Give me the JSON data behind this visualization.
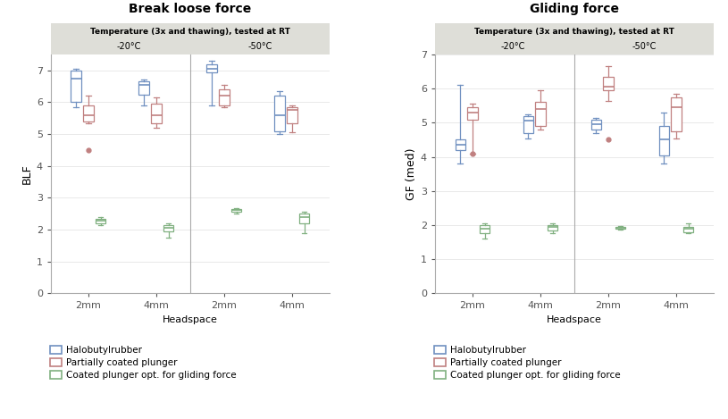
{
  "left_title": "Break loose force",
  "right_title": "Gliding force",
  "subtitle": "Temperature (3x and thawing), tested at RT",
  "temp_labels": [
    "-20°C",
    "-50°C"
  ],
  "x_labels": [
    "2mm",
    "4mm",
    "2mm",
    "4mm"
  ],
  "left_ylabel": "BLF",
  "right_ylabel": "GF (med)",
  "xlabel": "Headspace",
  "colors": {
    "blue": "#7090C0",
    "red": "#C08080",
    "green": "#80B080"
  },
  "legend_labels": [
    "Halobutylrubber",
    "Partially coated plunger",
    "Coated plunger opt. for gliding force"
  ],
  "left_ylim": [
    0,
    7.5
  ],
  "right_ylim": [
    0,
    7.0
  ],
  "left_yticks": [
    0,
    1,
    2,
    3,
    4,
    5,
    6,
    7
  ],
  "right_yticks": [
    0,
    1,
    2,
    3,
    4,
    5,
    6,
    7
  ],
  "left_boxes": {
    "blue": [
      {
        "whislo": 5.85,
        "q1": 6.0,
        "med": 6.75,
        "q3": 7.0,
        "whishi": 7.05,
        "fliers": []
      },
      {
        "whislo": 5.9,
        "q1": 6.25,
        "med": 6.55,
        "q3": 6.65,
        "whishi": 6.7,
        "fliers": []
      },
      {
        "whislo": 5.9,
        "q1": 6.95,
        "med": 7.05,
        "q3": 7.2,
        "whishi": 7.3,
        "fliers": []
      },
      {
        "whislo": 5.0,
        "q1": 5.1,
        "med": 5.6,
        "q3": 6.2,
        "whishi": 6.35,
        "fliers": []
      }
    ],
    "red": [
      {
        "whislo": 5.35,
        "q1": 5.4,
        "med": 5.58,
        "q3": 5.9,
        "whishi": 6.2,
        "fliers": [
          4.5
        ]
      },
      {
        "whislo": 5.2,
        "q1": 5.35,
        "med": 5.6,
        "q3": 5.95,
        "whishi": 6.15,
        "fliers": []
      },
      {
        "whislo": 5.85,
        "q1": 5.9,
        "med": 6.2,
        "q3": 6.4,
        "whishi": 6.55,
        "fliers": []
      },
      {
        "whislo": 5.05,
        "q1": 5.35,
        "med": 5.75,
        "q3": 5.85,
        "whishi": 5.9,
        "fliers": []
      }
    ],
    "green": [
      {
        "whislo": 2.15,
        "q1": 2.2,
        "med": 2.28,
        "q3": 2.35,
        "whishi": 2.4,
        "fliers": []
      },
      {
        "whislo": 1.75,
        "q1": 1.95,
        "med": 2.05,
        "q3": 2.15,
        "whishi": 2.2,
        "fliers": []
      },
      {
        "whislo": 2.5,
        "q1": 2.55,
        "med": 2.62,
        "q3": 2.65,
        "whishi": 2.68,
        "fliers": []
      },
      {
        "whislo": 1.9,
        "q1": 2.2,
        "med": 2.4,
        "q3": 2.5,
        "whishi": 2.55,
        "fliers": []
      }
    ]
  },
  "right_boxes": {
    "blue": [
      {
        "whislo": 3.8,
        "q1": 4.2,
        "med": 4.35,
        "q3": 4.5,
        "whishi": 6.1,
        "fliers": []
      },
      {
        "whislo": 4.55,
        "q1": 4.7,
        "med": 5.05,
        "q3": 5.2,
        "whishi": 5.25,
        "fliers": []
      },
      {
        "whislo": 4.7,
        "q1": 4.8,
        "med": 4.95,
        "q3": 5.1,
        "whishi": 5.15,
        "fliers": []
      },
      {
        "whislo": 3.8,
        "q1": 4.05,
        "med": 4.5,
        "q3": 4.9,
        "whishi": 5.3,
        "fliers": []
      }
    ],
    "red": [
      {
        "whislo": 4.1,
        "q1": 5.1,
        "med": 5.3,
        "q3": 5.45,
        "whishi": 5.55,
        "fliers": [
          4.1
        ]
      },
      {
        "whislo": 4.8,
        "q1": 4.9,
        "med": 5.4,
        "q3": 5.6,
        "whishi": 5.95,
        "fliers": []
      },
      {
        "whislo": 5.65,
        "q1": 5.95,
        "med": 6.05,
        "q3": 6.35,
        "whishi": 6.65,
        "fliers": [
          4.5
        ]
      },
      {
        "whislo": 4.55,
        "q1": 4.75,
        "med": 5.45,
        "q3": 5.75,
        "whishi": 5.85,
        "fliers": []
      }
    ],
    "green": [
      {
        "whislo": 1.6,
        "q1": 1.75,
        "med": 1.9,
        "q3": 2.0,
        "whishi": 2.05,
        "fliers": []
      },
      {
        "whislo": 1.75,
        "q1": 1.85,
        "med": 1.95,
        "q3": 2.0,
        "whishi": 2.05,
        "fliers": []
      },
      {
        "whislo": 1.88,
        "q1": 1.9,
        "med": 1.92,
        "q3": 1.95,
        "whishi": 1.97,
        "fliers": []
      },
      {
        "whislo": 1.75,
        "q1": 1.8,
        "med": 1.9,
        "q3": 1.95,
        "whishi": 2.05,
        "fliers": []
      }
    ]
  },
  "banner_color": "#deded8",
  "plot_bg": "#ffffff",
  "fig_bg": "#ffffff"
}
